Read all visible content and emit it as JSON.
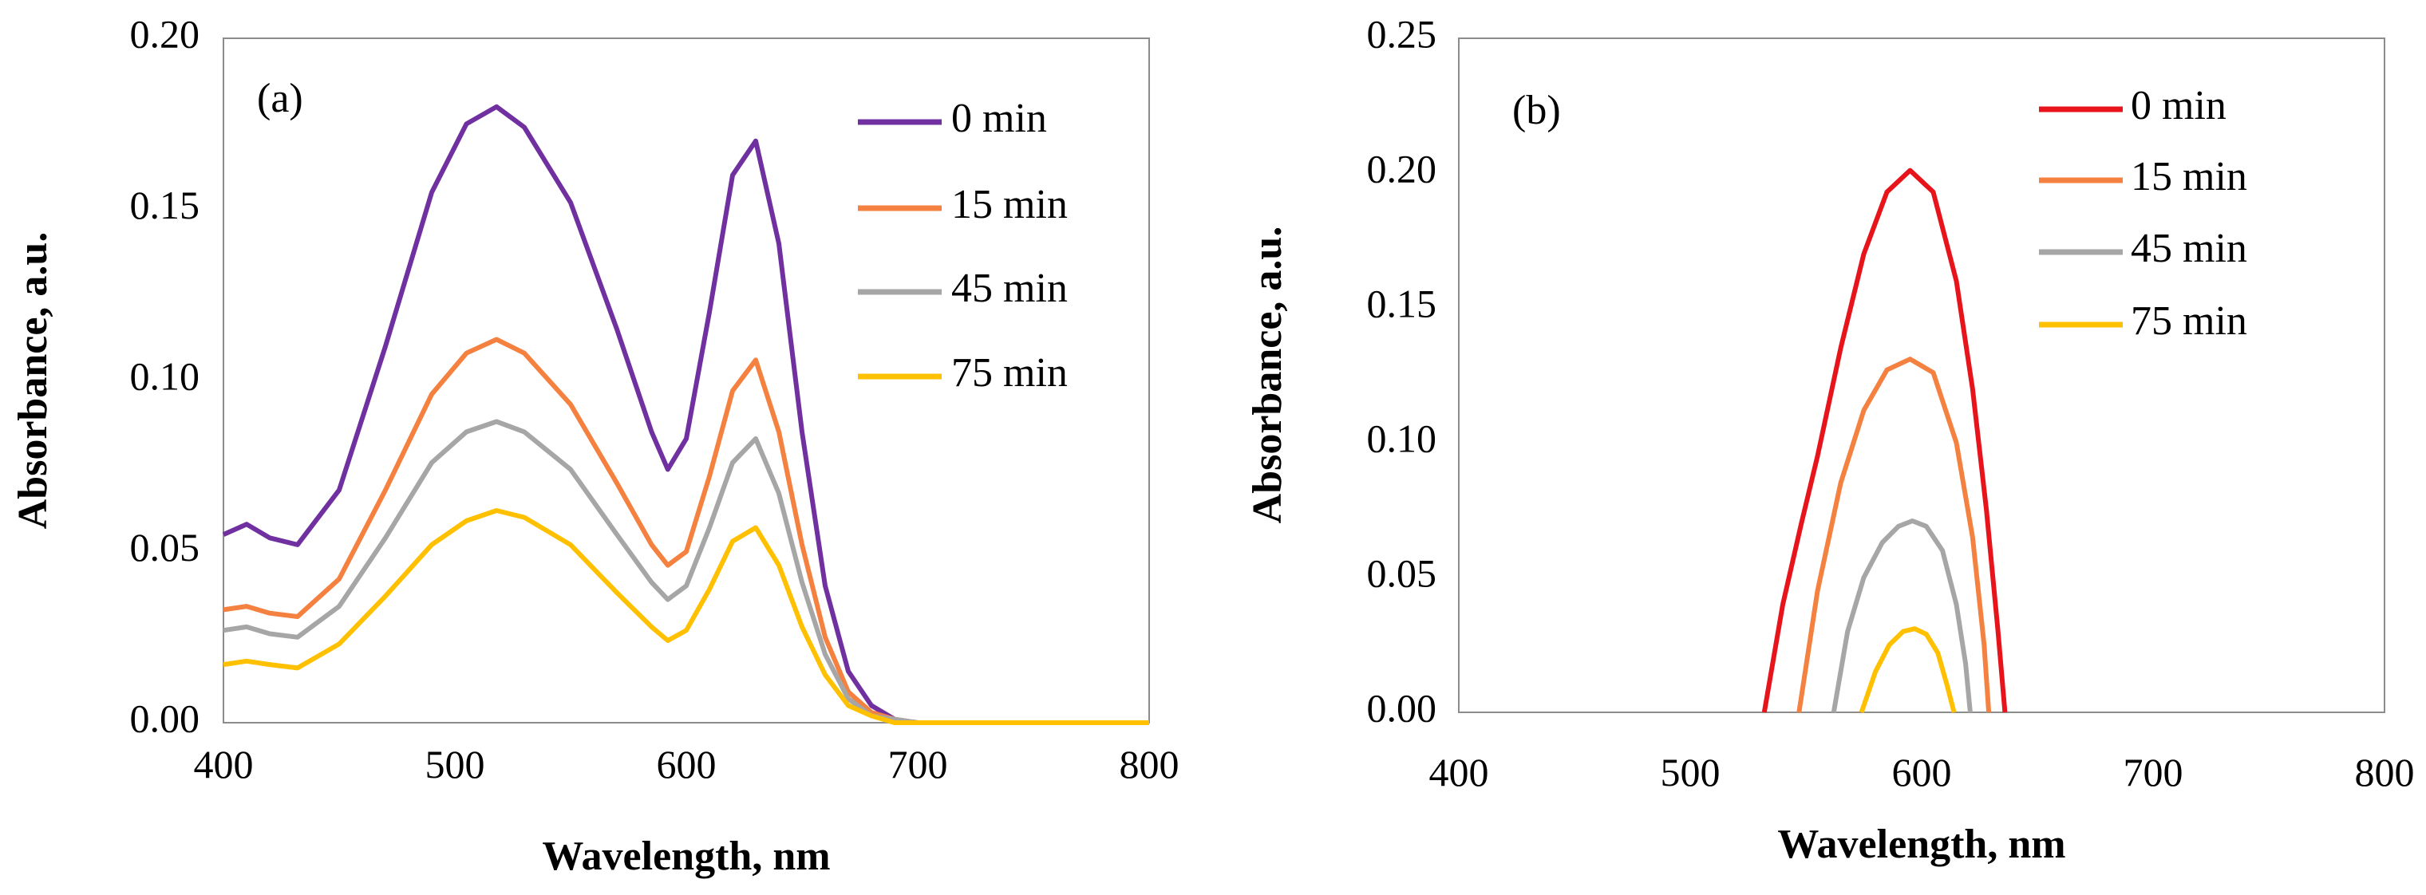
{
  "chart_data": [
    {
      "type": "line",
      "panel_label": "(a)",
      "xlabel": "Wavelength, nm",
      "ylabel": "Absorbance, a.u.",
      "xlim": [
        400,
        800
      ],
      "ylim": [
        0,
        0.2
      ],
      "xticks": [
        "400",
        "500",
        "600",
        "700",
        "800"
      ],
      "yticks": [
        "0.00",
        "0.05",
        "0.10",
        "0.15",
        "0.20"
      ],
      "grid": false,
      "legend_position": "top-right",
      "x": [
        400,
        410,
        420,
        432,
        450,
        470,
        490,
        505,
        518,
        530,
        550,
        570,
        585,
        592,
        600,
        610,
        620,
        630,
        640,
        650,
        660,
        670,
        680,
        690,
        700,
        750,
        800
      ],
      "series": [
        {
          "name": "0 min",
          "color": "#7030A0",
          "values": [
            0.055,
            0.058,
            0.054,
            0.052,
            0.068,
            0.11,
            0.155,
            0.175,
            0.18,
            0.174,
            0.152,
            0.115,
            0.085,
            0.074,
            0.083,
            0.12,
            0.16,
            0.17,
            0.14,
            0.085,
            0.04,
            0.015,
            0.005,
            0.001,
            0.0,
            0.0,
            0.0
          ]
        },
        {
          "name": "15 min",
          "color": "#F4813F",
          "values": [
            0.033,
            0.034,
            0.032,
            0.031,
            0.042,
            0.068,
            0.096,
            0.108,
            0.112,
            0.108,
            0.093,
            0.07,
            0.052,
            0.046,
            0.05,
            0.072,
            0.097,
            0.106,
            0.085,
            0.052,
            0.025,
            0.009,
            0.003,
            0.001,
            0.0,
            0.0,
            0.0
          ]
        },
        {
          "name": "45 min",
          "color": "#A6A6A6",
          "values": [
            0.027,
            0.028,
            0.026,
            0.025,
            0.034,
            0.054,
            0.076,
            0.085,
            0.088,
            0.085,
            0.074,
            0.055,
            0.041,
            0.036,
            0.04,
            0.057,
            0.076,
            0.083,
            0.067,
            0.041,
            0.02,
            0.007,
            0.002,
            0.001,
            0.0,
            0.0,
            0.0
          ]
        },
        {
          "name": "75 min",
          "color": "#FFC000",
          "values": [
            0.017,
            0.018,
            0.017,
            0.016,
            0.023,
            0.037,
            0.052,
            0.059,
            0.062,
            0.06,
            0.052,
            0.038,
            0.028,
            0.024,
            0.027,
            0.039,
            0.053,
            0.057,
            0.046,
            0.028,
            0.014,
            0.005,
            0.002,
            0.0,
            0.0,
            0.0,
            0.0
          ]
        }
      ]
    },
    {
      "type": "line",
      "panel_label": "(b)",
      "xlabel": "Wavelength, nm",
      "ylabel": "Absorbance, a.u.",
      "xlim": [
        400,
        800
      ],
      "ylim": [
        0,
        0.25
      ],
      "xticks": [
        "400",
        "500",
        "600",
        "700",
        "800"
      ],
      "yticks": [
        "0.00",
        "0.05",
        "0.10",
        "0.15",
        "0.20",
        "0.25"
      ],
      "grid": false,
      "legend_position": "top-right",
      "series": [
        {
          "name": "0 min",
          "color": "#E8141B",
          "x": [
            532,
            540,
            548,
            555,
            565,
            575,
            585,
            595,
            605,
            615,
            622,
            628,
            633,
            636
          ],
          "values": [
            0.0,
            0.04,
            0.07,
            0.095,
            0.135,
            0.17,
            0.193,
            0.201,
            0.193,
            0.16,
            0.12,
            0.075,
            0.03,
            0.0
          ]
        },
        {
          "name": "15 min",
          "color": "#F4813F",
          "x": [
            547,
            555,
            565,
            575,
            585,
            595,
            605,
            615,
            622,
            627,
            629
          ],
          "values": [
            0.0,
            0.045,
            0.085,
            0.112,
            0.127,
            0.131,
            0.126,
            0.1,
            0.065,
            0.025,
            0.0
          ]
        },
        {
          "name": "45 min",
          "color": "#A6A6A6",
          "x": [
            562,
            568,
            575,
            583,
            590,
            596,
            602,
            609,
            615,
            619,
            621
          ],
          "values": [
            0.0,
            0.03,
            0.05,
            0.063,
            0.069,
            0.071,
            0.069,
            0.06,
            0.04,
            0.018,
            0.0
          ]
        },
        {
          "name": "75 min",
          "color": "#FFC000",
          "x": [
            574,
            580,
            586,
            592,
            597,
            602,
            607,
            611,
            614
          ],
          "values": [
            0.0,
            0.015,
            0.025,
            0.03,
            0.031,
            0.029,
            0.022,
            0.01,
            0.0
          ]
        }
      ]
    }
  ]
}
